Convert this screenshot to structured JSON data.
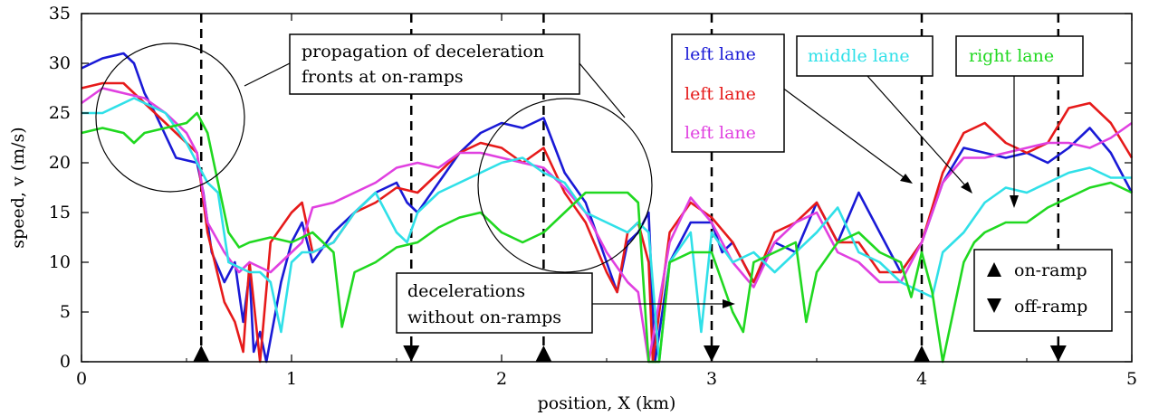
{
  "chart_data": {
    "type": "line",
    "xlabel": "position, X (km)",
    "ylabel": "speed, v (m/s)",
    "xlim": [
      0,
      5
    ],
    "ylim": [
      0,
      35
    ],
    "x_ticks": [
      "0",
      "1",
      "2",
      "3",
      "4",
      "5"
    ],
    "y_ticks": [
      "0",
      "5",
      "10",
      "15",
      "20",
      "25",
      "30",
      "35"
    ],
    "grid": false,
    "on_ramps_km": [
      0.57,
      2.2,
      4.0
    ],
    "off_ramps_km": [
      1.57,
      3.0,
      4.65
    ],
    "colors": {
      "blue": "#1a1ad6",
      "red": "#e61a1a",
      "magenta": "#e040e0",
      "cyan": "#30e0e8",
      "green": "#20d820"
    },
    "series": [
      {
        "color": "#1a1ad6",
        "x": [
          0,
          0.1,
          0.2,
          0.25,
          0.3,
          0.35,
          0.45,
          0.55,
          0.58,
          0.62,
          0.68,
          0.73,
          0.77,
          0.8,
          0.82,
          0.85,
          0.88,
          0.95,
          1.0,
          1.05,
          1.1,
          1.2,
          1.3,
          1.4,
          1.5,
          1.55,
          1.6,
          1.7,
          1.8,
          1.9,
          2.0,
          2.1,
          2.2,
          2.3,
          2.4,
          2.5,
          2.55,
          2.6,
          2.65,
          2.7,
          2.73,
          2.8,
          2.9,
          3.0,
          3.05,
          3.1,
          3.2,
          3.3,
          3.4,
          3.5,
          3.6,
          3.7,
          3.8,
          3.9,
          4.0,
          4.1,
          4.2,
          4.3,
          4.4,
          4.5,
          4.6,
          4.7,
          4.8,
          4.9,
          5.0
        ],
        "y": [
          29.5,
          30.5,
          31,
          30,
          27,
          25,
          20.5,
          20,
          17,
          11,
          8,
          10,
          4,
          9,
          1,
          3,
          0,
          8,
          12,
          14,
          10,
          13,
          15,
          17,
          18,
          16,
          15,
          18,
          21,
          23,
          24,
          23.5,
          24.5,
          19,
          16,
          10,
          7,
          12,
          13,
          15,
          0,
          10,
          14,
          14,
          11,
          12,
          8,
          12,
          11,
          16,
          12,
          17,
          13,
          9,
          12,
          18,
          21.5,
          21,
          20.5,
          21,
          20,
          21.5,
          23.5,
          21,
          17
        ]
      },
      {
        "color": "#e61a1a",
        "x": [
          0,
          0.1,
          0.2,
          0.3,
          0.4,
          0.5,
          0.55,
          0.6,
          0.68,
          0.73,
          0.77,
          0.8,
          0.85,
          0.9,
          1.0,
          1.05,
          1.1,
          1.2,
          1.3,
          1.4,
          1.5,
          1.6,
          1.7,
          1.8,
          1.9,
          2.0,
          2.1,
          2.2,
          2.3,
          2.4,
          2.5,
          2.55,
          2.6,
          2.65,
          2.7,
          2.72,
          2.8,
          2.9,
          3.0,
          3.1,
          3.2,
          3.3,
          3.4,
          3.5,
          3.6,
          3.7,
          3.8,
          3.9,
          4.0,
          4.1,
          4.2,
          4.3,
          4.4,
          4.5,
          4.6,
          4.7,
          4.8,
          4.9,
          5.0
        ],
        "y": [
          27.5,
          28,
          28,
          26,
          24,
          22,
          21,
          13,
          6,
          4,
          1,
          10,
          0,
          12,
          15,
          16,
          11,
          12,
          15,
          16,
          17.5,
          17,
          19,
          21,
          22,
          21.5,
          20,
          21.5,
          17,
          14,
          9,
          7,
          13,
          14,
          10,
          0,
          13,
          16,
          14.5,
          12,
          8,
          13,
          14,
          16,
          12,
          12,
          9,
          9,
          12,
          19,
          23,
          24,
          22,
          21,
          22,
          25.5,
          26,
          24,
          20.5
        ]
      },
      {
        "color": "#e040e0",
        "x": [
          0,
          0.1,
          0.2,
          0.3,
          0.4,
          0.5,
          0.55,
          0.6,
          0.68,
          0.75,
          0.8,
          0.9,
          1.0,
          1.05,
          1.1,
          1.2,
          1.3,
          1.4,
          1.5,
          1.6,
          1.7,
          1.8,
          1.9,
          2.0,
          2.1,
          2.2,
          2.3,
          2.4,
          2.5,
          2.6,
          2.65,
          2.7,
          2.8,
          2.9,
          3.0,
          3.1,
          3.2,
          3.3,
          3.4,
          3.5,
          3.6,
          3.7,
          3.8,
          3.9,
          4.0,
          4.1,
          4.2,
          4.3,
          4.4,
          4.5,
          4.6,
          4.7,
          4.8,
          4.9,
          5.0
        ],
        "y": [
          26,
          27.5,
          27,
          26.5,
          25,
          23,
          21,
          14,
          11,
          9,
          10,
          9,
          11,
          12,
          15.5,
          16,
          17,
          18,
          19.5,
          20,
          19.5,
          21,
          21,
          20.5,
          20,
          19.5,
          17.5,
          15,
          11,
          8,
          7,
          0,
          12,
          16.5,
          14,
          10,
          7.5,
          12,
          14,
          15,
          11,
          10,
          8,
          8,
          12,
          18,
          20.5,
          20.5,
          21,
          21.5,
          22,
          22,
          21.5,
          22.5,
          24
        ]
      },
      {
        "color": "#30e0e8",
        "x": [
          0,
          0.1,
          0.2,
          0.25,
          0.3,
          0.4,
          0.5,
          0.55,
          0.6,
          0.65,
          0.7,
          0.8,
          0.85,
          0.9,
          0.95,
          1.0,
          1.05,
          1.1,
          1.2,
          1.3,
          1.4,
          1.5,
          1.55,
          1.6,
          1.7,
          1.8,
          1.9,
          2.0,
          2.1,
          2.2,
          2.3,
          2.4,
          2.5,
          2.6,
          2.65,
          2.7,
          2.75,
          2.8,
          2.9,
          2.95,
          3.0,
          3.1,
          3.2,
          3.3,
          3.4,
          3.5,
          3.6,
          3.7,
          3.8,
          3.9,
          4.0,
          4.05,
          4.1,
          4.2,
          4.3,
          4.4,
          4.5,
          4.6,
          4.7,
          4.8,
          4.9,
          5.0
        ],
        "y": [
          25,
          25,
          26,
          26.5,
          26,
          25,
          22,
          20,
          18,
          17,
          10,
          9,
          9,
          8,
          3,
          10,
          11,
          11,
          12,
          15,
          17,
          13,
          12,
          15,
          17,
          18,
          19,
          20,
          20.5,
          19,
          18,
          15,
          14,
          13,
          14,
          13,
          0,
          10,
          13,
          3,
          13,
          10,
          11,
          9,
          11,
          13,
          15.5,
          11,
          10,
          8,
          7,
          6.5,
          11,
          13,
          16,
          17.5,
          17,
          18,
          19,
          19.5,
          18.5,
          18.5
        ]
      },
      {
        "color": "#20d820",
        "x": [
          0,
          0.1,
          0.2,
          0.25,
          0.3,
          0.4,
          0.5,
          0.55,
          0.6,
          0.65,
          0.7,
          0.75,
          0.8,
          0.9,
          1.0,
          1.1,
          1.2,
          1.24,
          1.3,
          1.4,
          1.5,
          1.6,
          1.7,
          1.8,
          1.9,
          2.0,
          2.1,
          2.2,
          2.3,
          2.4,
          2.5,
          2.6,
          2.65,
          2.7,
          2.75,
          2.8,
          2.9,
          3.0,
          3.1,
          3.15,
          3.2,
          3.3,
          3.4,
          3.45,
          3.5,
          3.6,
          3.7,
          3.8,
          3.9,
          3.95,
          4.0,
          4.05,
          4.1,
          4.2,
          4.25,
          4.3,
          4.4,
          4.5,
          4.6,
          4.7,
          4.8,
          4.9,
          5.0
        ],
        "y": [
          23,
          23.5,
          23,
          22,
          23,
          23.5,
          24,
          25,
          23,
          18,
          13,
          11.5,
          12,
          12.5,
          12,
          13,
          11,
          3.5,
          9,
          10,
          11.5,
          12,
          13.5,
          14.5,
          15,
          13,
          12,
          13,
          15,
          17,
          17,
          17,
          16,
          0,
          0,
          10,
          11,
          11,
          5,
          3,
          10,
          11,
          12,
          4,
          9,
          12,
          13,
          11,
          10,
          6.5,
          11,
          7,
          0,
          10,
          12,
          13,
          14,
          14,
          15.5,
          16.5,
          17.5,
          18,
          17
        ]
      }
    ],
    "annotations": {
      "fronts_box": [
        "propagation of deceleration",
        "fronts at on-ramps"
      ],
      "decel_box": [
        "decelerations",
        "without on-ramps"
      ],
      "legend_left_lane_1": "left lane",
      "legend_left_lane_2": "left lane",
      "legend_left_lane_3": "left lane",
      "legend_middle_lane": "middle lane",
      "legend_right_lane": "right lane",
      "on_ramp_label": "on-ramp",
      "off_ramp_label": "off-ramp"
    }
  }
}
